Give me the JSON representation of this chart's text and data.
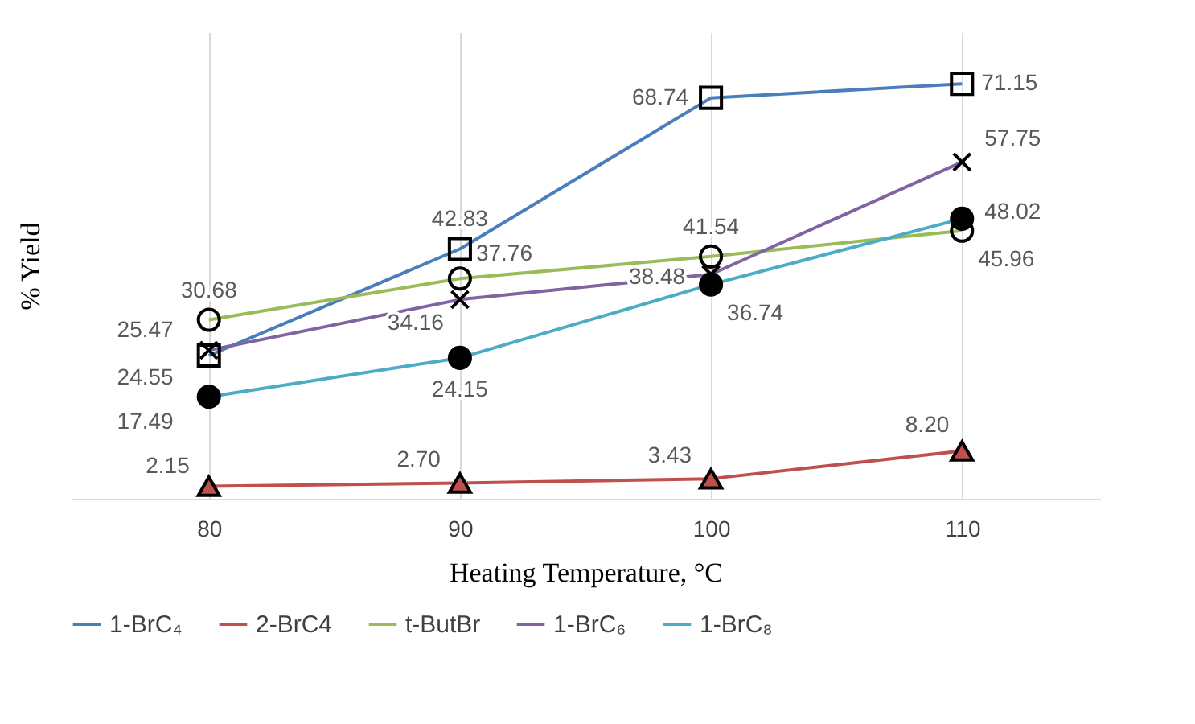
{
  "chart_data": {
    "type": "line",
    "xlabel": "Heating Temperature, °C",
    "ylabel": "% Yield",
    "categories": [
      "80",
      "90",
      "100",
      "110"
    ],
    "series": [
      {
        "name": "1-BrC₄",
        "color": "#4a7ebb",
        "marker": "square",
        "values": [
          24.55,
          42.83,
          68.74,
          71.15
        ],
        "value_labels": [
          "24.55",
          "42.83",
          "68.74",
          "71.15"
        ]
      },
      {
        "name": "2-BrC4",
        "color": "#c0504d",
        "marker": "triangle",
        "values": [
          2.15,
          2.7,
          3.43,
          8.2
        ],
        "value_labels": [
          "2.15",
          "2.70",
          "3.43",
          "8.20"
        ]
      },
      {
        "name": "t-ButBr",
        "color": "#9bbb59",
        "marker": "circle",
        "values": [
          30.68,
          37.76,
          41.54,
          45.96
        ],
        "value_labels": [
          "30.68",
          "37.76",
          "41.54",
          "45.96"
        ]
      },
      {
        "name": "1-BrC₆",
        "color": "#8064a2",
        "marker": "cross",
        "values": [
          25.47,
          34.16,
          38.48,
          57.75
        ],
        "value_labels": [
          "25.47",
          "34.16",
          "38.48",
          "57.75"
        ]
      },
      {
        "name": "1-BrC₈",
        "color": "#4bacc6",
        "marker": "circle",
        "values": [
          17.49,
          24.15,
          36.74,
          48.02
        ],
        "value_labels": [
          "17.49",
          "24.15",
          "36.74",
          "48.02"
        ]
      }
    ],
    "ylim": [
      0,
      80
    ],
    "tick_labels": "x",
    "grid": "x",
    "legend": "bottom",
    "line_style": "solid"
  }
}
